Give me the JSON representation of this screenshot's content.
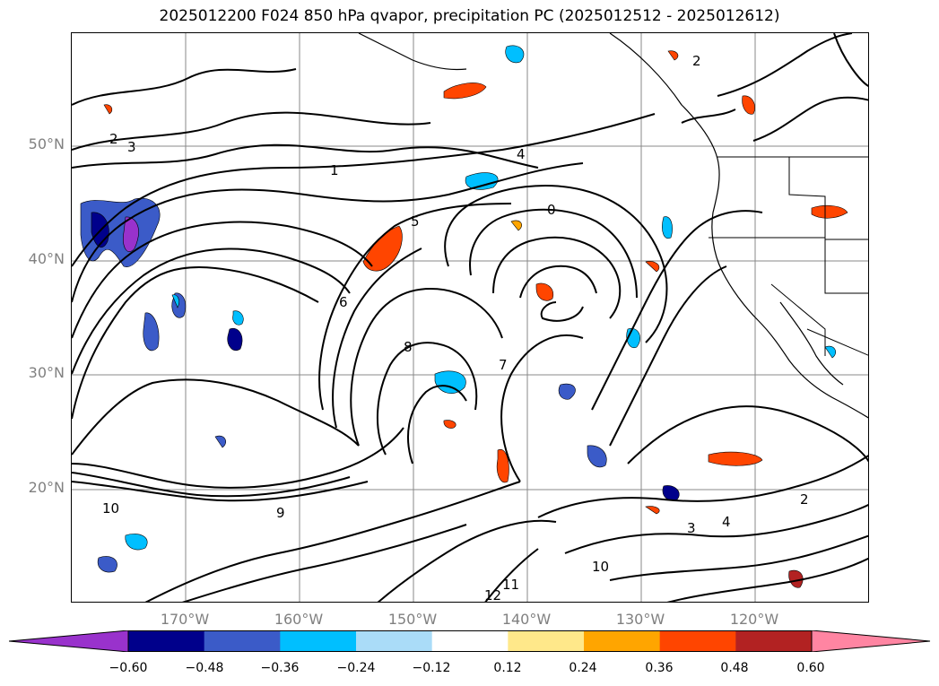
{
  "title": "2025012200 F024 850 hPa qvapor, precipitation PC (2025012512 - 2025012612)",
  "colors": {
    "contour": "#000000",
    "grid": "#888888",
    "coast": "#000000",
    "bins": [
      "#9932cc",
      "#00008b",
      "#3b5bc8",
      "#00bfff",
      "#aadcf8",
      "#ffffff",
      "#ffe88a",
      "#ffa500",
      "#ff4500",
      "#b22222",
      "#ff85a2"
    ]
  },
  "lat_labels": [
    "50°N",
    "40°N",
    "30°N",
    "20°N"
  ],
  "lon_labels": [
    "170°W",
    "160°W",
    "150°W",
    "140°W",
    "130°W",
    "120°W"
  ],
  "colorbar": {
    "ticks": [
      "−0.60",
      "−0.48",
      "−0.36",
      "−0.24",
      "−0.12",
      "0.12",
      "0.24",
      "0.36",
      "0.48",
      "0.60"
    ],
    "extend": "both"
  },
  "contour_labels": [
    "1",
    "2",
    "3",
    "4",
    "5",
    "6",
    "7",
    "8",
    "9",
    "10",
    "11",
    "12",
    "0"
  ]
}
